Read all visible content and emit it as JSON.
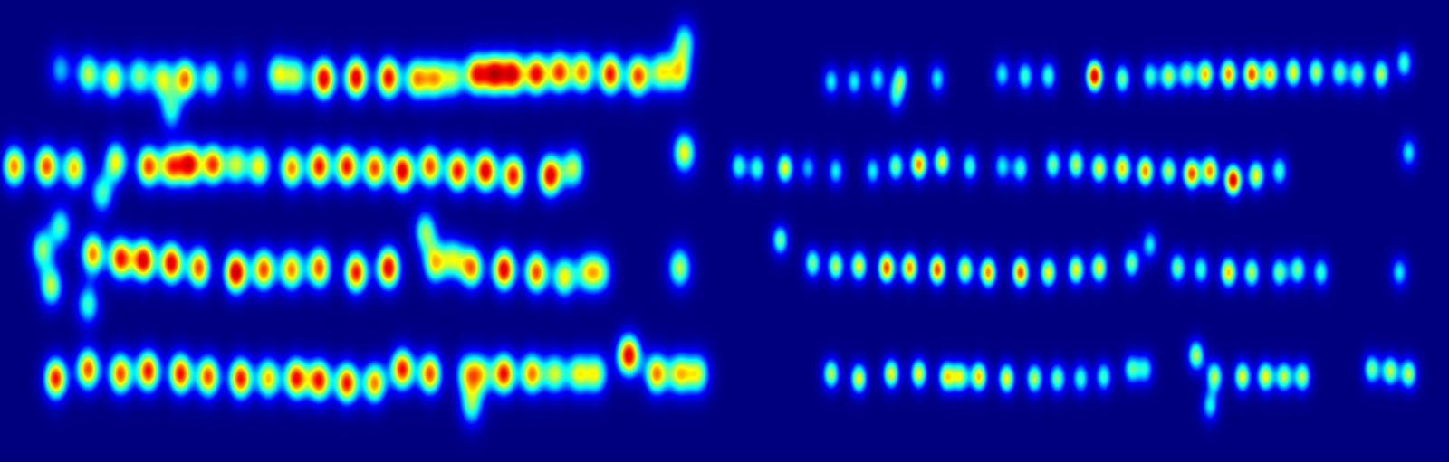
{
  "chart_data": [
    {
      "type": "heatmap",
      "tick_labels": false,
      "xlim": [
        0,
        784
      ],
      "ylim": [
        0,
        501
      ],
      "color_range": [
        0,
        1
      ],
      "colors": [
        "#00007f",
        "#0000ff",
        "#00ffff",
        "#ffff00",
        "#ff0000",
        "#7f0000"
      ],
      "blobs": [
        [
          65,
          75,
          0.35
        ],
        [
          95,
          80,
          0.55
        ],
        [
          122,
          85,
          0.6
        ],
        [
          150,
          82,
          0.5
        ],
        [
          175,
          85,
          0.55
        ],
        [
          200,
          85,
          0.7
        ],
        [
          228,
          85,
          0.5
        ],
        [
          260,
          80,
          0.35
        ],
        [
          300,
          80,
          0.55
        ],
        [
          320,
          82,
          0.5
        ],
        [
          350,
          85,
          0.85
        ],
        [
          385,
          84,
          0.85
        ],
        [
          420,
          84,
          0.82
        ],
        [
          450,
          85,
          0.65
        ],
        [
          470,
          85,
          0.6
        ],
        [
          490,
          84,
          0.5
        ],
        [
          515,
          80,
          0.75
        ],
        [
          535,
          80,
          0.8
        ],
        [
          555,
          80,
          0.8
        ],
        [
          580,
          80,
          0.8
        ],
        [
          605,
          78,
          0.75
        ],
        [
          630,
          78,
          0.7
        ],
        [
          660,
          80,
          0.8
        ],
        [
          690,
          82,
          0.75
        ],
        [
          715,
          78,
          0.55
        ],
        [
          735,
          78,
          0.55
        ],
        [
          740,
          45,
          0.45
        ],
        [
          185,
          120,
          0.4
        ],
        [
          15,
          180,
          0.7
        ],
        [
          50,
          180,
          0.75
        ],
        [
          80,
          182,
          0.65
        ],
        [
          110,
          210,
          0.45
        ],
        [
          125,
          175,
          0.6
        ],
        [
          160,
          180,
          0.75
        ],
        [
          185,
          180,
          0.7
        ],
        [
          205,
          178,
          0.8
        ],
        [
          230,
          178,
          0.75
        ],
        [
          255,
          178,
          0.55
        ],
        [
          280,
          180,
          0.6
        ],
        [
          315,
          182,
          0.7
        ],
        [
          345,
          180,
          0.8
        ],
        [
          375,
          180,
          0.8
        ],
        [
          405,
          182,
          0.75
        ],
        [
          435,
          185,
          0.85
        ],
        [
          465,
          180,
          0.75
        ],
        [
          495,
          185,
          0.8
        ],
        [
          525,
          185,
          0.85
        ],
        [
          555,
          190,
          0.8
        ],
        [
          595,
          190,
          0.85
        ],
        [
          620,
          182,
          0.55
        ],
        [
          740,
          165,
          0.6
        ],
        [
          45,
          270,
          0.5
        ],
        [
          55,
          310,
          0.55
        ],
        [
          65,
          245,
          0.45
        ],
        [
          95,
          330,
          0.45
        ],
        [
          100,
          275,
          0.7
        ],
        [
          130,
          280,
          0.8
        ],
        [
          155,
          282,
          0.85
        ],
        [
          185,
          285,
          0.85
        ],
        [
          215,
          290,
          0.75
        ],
        [
          255,
          295,
          0.9
        ],
        [
          285,
          292,
          0.75
        ],
        [
          315,
          292,
          0.7
        ],
        [
          345,
          290,
          0.75
        ],
        [
          385,
          295,
          0.8
        ],
        [
          420,
          290,
          0.85
        ],
        [
          460,
          250,
          0.5
        ],
        [
          470,
          285,
          0.6
        ],
        [
          490,
          280,
          0.5
        ],
        [
          510,
          290,
          0.7
        ],
        [
          545,
          292,
          0.85
        ],
        [
          580,
          295,
          0.75
        ],
        [
          610,
          300,
          0.6
        ],
        [
          635,
          295,
          0.5
        ],
        [
          650,
          295,
          0.45
        ],
        [
          735,
          290,
          0.55
        ],
        [
          60,
          410,
          0.8
        ],
        [
          95,
          400,
          0.75
        ],
        [
          130,
          405,
          0.75
        ],
        [
          160,
          402,
          0.8
        ],
        [
          195,
          405,
          0.8
        ],
        [
          225,
          408,
          0.75
        ],
        [
          260,
          410,
          0.8
        ],
        [
          290,
          410,
          0.65
        ],
        [
          320,
          410,
          0.8
        ],
        [
          345,
          412,
          0.8
        ],
        [
          375,
          415,
          0.8
        ],
        [
          405,
          415,
          0.7
        ],
        [
          435,
          400,
          0.8
        ],
        [
          465,
          405,
          0.75
        ],
        [
          505,
          405,
          0.5
        ],
        [
          520,
          405,
          0.5
        ],
        [
          510,
          440,
          0.45
        ],
        [
          545,
          405,
          0.8
        ],
        [
          575,
          405,
          0.7
        ],
        [
          600,
          405,
          0.55
        ],
        [
          625,
          405,
          0.55
        ],
        [
          645,
          405,
          0.55
        ],
        [
          680,
          385,
          0.85
        ],
        [
          710,
          405,
          0.7
        ],
        [
          735,
          405,
          0.6
        ],
        [
          755,
          405,
          0.55
        ]
      ]
    },
    {
      "type": "heatmap",
      "tick_labels": false,
      "xlim": [
        0,
        784
      ],
      "ylim": [
        0,
        501
      ],
      "color_range": [
        0,
        1
      ],
      "colors": [
        "#00007f",
        "#0000ff",
        "#00ffff",
        "#ffff00",
        "#ff0000",
        "#7f0000"
      ],
      "blobs": [
        [
          115,
          88,
          0.4
        ],
        [
          140,
          88,
          0.4
        ],
        [
          165,
          85,
          0.4
        ],
        [
          185,
          105,
          0.35
        ],
        [
          190,
          85,
          0.45
        ],
        [
          230,
          85,
          0.4
        ],
        [
          300,
          80,
          0.4
        ],
        [
          325,
          82,
          0.45
        ],
        [
          350,
          82,
          0.45
        ],
        [
          400,
          82,
          0.85
        ],
        [
          430,
          85,
          0.5
        ],
        [
          460,
          82,
          0.45
        ],
        [
          480,
          82,
          0.55
        ],
        [
          500,
          80,
          0.5
        ],
        [
          520,
          80,
          0.65
        ],
        [
          545,
          80,
          0.7
        ],
        [
          570,
          80,
          0.75
        ],
        [
          590,
          80,
          0.65
        ],
        [
          615,
          78,
          0.6
        ],
        [
          640,
          78,
          0.55
        ],
        [
          665,
          78,
          0.5
        ],
        [
          685,
          80,
          0.5
        ],
        [
          710,
          80,
          0.55
        ],
        [
          735,
          68,
          0.45
        ],
        [
          15,
          180,
          0.45
        ],
        [
          35,
          182,
          0.45
        ],
        [
          65,
          182,
          0.6
        ],
        [
          90,
          182,
          0.35
        ],
        [
          120,
          185,
          0.4
        ],
        [
          160,
          185,
          0.4
        ],
        [
          185,
          180,
          0.5
        ],
        [
          210,
          178,
          0.7
        ],
        [
          235,
          175,
          0.6
        ],
        [
          265,
          180,
          0.45
        ],
        [
          300,
          180,
          0.4
        ],
        [
          320,
          182,
          0.45
        ],
        [
          355,
          178,
          0.5
        ],
        [
          380,
          178,
          0.55
        ],
        [
          405,
          182,
          0.6
        ],
        [
          430,
          182,
          0.65
        ],
        [
          455,
          185,
          0.7
        ],
        [
          480,
          185,
          0.55
        ],
        [
          505,
          188,
          0.75
        ],
        [
          525,
          185,
          0.7
        ],
        [
          550,
          195,
          0.85
        ],
        [
          575,
          190,
          0.6
        ],
        [
          600,
          185,
          0.45
        ],
        [
          740,
          165,
          0.4
        ],
        [
          60,
          260,
          0.5
        ],
        [
          95,
          285,
          0.5
        ],
        [
          120,
          288,
          0.55
        ],
        [
          145,
          288,
          0.6
        ],
        [
          175,
          290,
          0.75
        ],
        [
          200,
          290,
          0.7
        ],
        [
          230,
          292,
          0.75
        ],
        [
          260,
          292,
          0.6
        ],
        [
          285,
          295,
          0.7
        ],
        [
          320,
          295,
          0.75
        ],
        [
          350,
          295,
          0.6
        ],
        [
          380,
          292,
          0.6
        ],
        [
          405,
          290,
          0.6
        ],
        [
          440,
          285,
          0.5
        ],
        [
          460,
          265,
          0.4
        ],
        [
          490,
          290,
          0.5
        ],
        [
          515,
          292,
          0.45
        ],
        [
          545,
          295,
          0.65
        ],
        [
          570,
          295,
          0.55
        ],
        [
          600,
          295,
          0.5
        ],
        [
          620,
          292,
          0.5
        ],
        [
          645,
          295,
          0.45
        ],
        [
          730,
          295,
          0.4
        ],
        [
          115,
          405,
          0.55
        ],
        [
          145,
          410,
          0.6
        ],
        [
          180,
          405,
          0.6
        ],
        [
          210,
          405,
          0.6
        ],
        [
          240,
          408,
          0.6
        ],
        [
          255,
          408,
          0.55
        ],
        [
          275,
          408,
          0.65
        ],
        [
          305,
          410,
          0.6
        ],
        [
          335,
          410,
          0.55
        ],
        [
          360,
          410,
          0.5
        ],
        [
          385,
          410,
          0.45
        ],
        [
          410,
          408,
          0.45
        ],
        [
          440,
          400,
          0.45
        ],
        [
          455,
          400,
          0.4
        ],
        [
          510,
          385,
          0.55
        ],
        [
          525,
          440,
          0.4
        ],
        [
          530,
          408,
          0.55
        ],
        [
          560,
          408,
          0.6
        ],
        [
          585,
          408,
          0.6
        ],
        [
          605,
          408,
          0.55
        ],
        [
          625,
          408,
          0.55
        ],
        [
          700,
          400,
          0.5
        ],
        [
          720,
          402,
          0.55
        ],
        [
          740,
          405,
          0.55
        ]
      ]
    }
  ]
}
